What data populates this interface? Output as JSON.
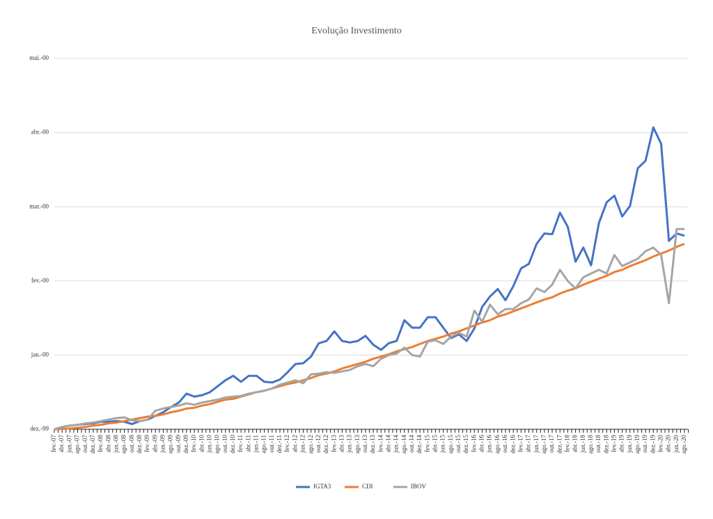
{
  "chart_data": {
    "type": "line",
    "title": "Evolução Investimento",
    "categories": [
      "fev.-07",
      "abr.-07",
      "jun.-07",
      "ago.-07",
      "out.-07",
      "dez.-07",
      "fev.-08",
      "abr.-08",
      "jun.-08",
      "ago.-08",
      "out.-08",
      "dez.-08",
      "fev.-09",
      "abr.-09",
      "jun.-09",
      "ago.-09",
      "out.-09",
      "dez.-09",
      "fev.-10",
      "abr.-10",
      "jun.-10",
      "ago.-10",
      "out.-10",
      "dez.-10",
      "fev.-11",
      "abr.-11",
      "jun.-11",
      "ago.-11",
      "out.-11",
      "dez.-11",
      "fev.-12",
      "abr.-12",
      "jun.-12",
      "ago.-12",
      "out.-12",
      "dez.-12",
      "fev.-13",
      "abr.-13",
      "jun.-13",
      "ago.-13",
      "out.-13",
      "dez.-13",
      "fev.-14",
      "abr.-14",
      "jun.-14",
      "ago.-14",
      "out.-14",
      "dez.-14",
      "fev.-15",
      "abr.-15",
      "jun.-15",
      "ago.-15",
      "out.-15",
      "dez.-15",
      "fev.-16",
      "abr.-16",
      "jun.-16",
      "ago.-16",
      "out.-16",
      "dez.-16",
      "fev.-17",
      "abr.-17",
      "jun.-17",
      "ago.-17",
      "out.-17",
      "dez.-17",
      "fev.-18",
      "abr.-18",
      "jun.-18",
      "ago.-18",
      "out.-18",
      "dez.-18",
      "fev.-19",
      "abr.-19",
      "jun.-19",
      "ago.-19",
      "out.-19",
      "dez.-19",
      "fev.-20",
      "abr.-20",
      "jun.-20",
      "ago.-20"
    ],
    "series": [
      {
        "name": "IGTA3",
        "color": "#4472c4",
        "values": [
          0,
          0.03,
          0.05,
          0.06,
          0.07,
          0.08,
          0.1,
          0.1,
          0.11,
          0.1,
          0.07,
          0.11,
          0.13,
          0.18,
          0.23,
          0.3,
          0.36,
          0.48,
          0.44,
          0.46,
          0.5,
          0.58,
          0.66,
          0.72,
          0.64,
          0.72,
          0.72,
          0.64,
          0.63,
          0.67,
          0.77,
          0.88,
          0.89,
          0.98,
          1.16,
          1.19,
          1.32,
          1.19,
          1.17,
          1.19,
          1.26,
          1.14,
          1.07,
          1.16,
          1.19,
          1.47,
          1.37,
          1.37,
          1.51,
          1.51,
          1.37,
          1.23,
          1.28,
          1.19,
          1.36,
          1.65,
          1.79,
          1.89,
          1.74,
          1.93,
          2.17,
          2.23,
          2.5,
          2.64,
          2.63,
          2.92,
          2.73,
          2.26,
          2.45,
          2.21,
          2.78,
          3.06,
          3.15,
          2.87,
          3.01,
          3.52,
          3.62,
          4.07,
          3.85,
          2.54,
          2.64,
          2.61
        ]
      },
      {
        "name": "CDI",
        "color": "#ed7d31",
        "values": [
          0,
          0.005,
          0.01,
          0.02,
          0.03,
          0.05,
          0.06,
          0.08,
          0.09,
          0.11,
          0.13,
          0.15,
          0.17,
          0.18,
          0.2,
          0.23,
          0.25,
          0.28,
          0.29,
          0.32,
          0.34,
          0.37,
          0.4,
          0.41,
          0.44,
          0.47,
          0.5,
          0.52,
          0.55,
          0.58,
          0.61,
          0.63,
          0.66,
          0.69,
          0.73,
          0.75,
          0.78,
          0.82,
          0.85,
          0.88,
          0.91,
          0.95,
          0.98,
          1.01,
          1.05,
          1.08,
          1.11,
          1.15,
          1.19,
          1.22,
          1.25,
          1.29,
          1.32,
          1.36,
          1.4,
          1.44,
          1.47,
          1.52,
          1.55,
          1.59,
          1.63,
          1.67,
          1.71,
          1.75,
          1.78,
          1.83,
          1.87,
          1.9,
          1.95,
          1.99,
          2.03,
          2.07,
          2.12,
          2.15,
          2.2,
          2.24,
          2.28,
          2.33,
          2.37,
          2.41,
          2.46,
          2.5
        ]
      },
      {
        "name": "IBOV",
        "color": "#a5a5a5",
        "values": [
          0,
          0.03,
          0.05,
          0.06,
          0.08,
          0.09,
          0.11,
          0.13,
          0.15,
          0.16,
          0.12,
          0.11,
          0.13,
          0.25,
          0.28,
          0.3,
          0.32,
          0.35,
          0.33,
          0.36,
          0.38,
          0.4,
          0.43,
          0.44,
          0.45,
          0.48,
          0.5,
          0.52,
          0.55,
          0.6,
          0.63,
          0.66,
          0.62,
          0.74,
          0.75,
          0.77,
          0.76,
          0.78,
          0.8,
          0.85,
          0.88,
          0.85,
          0.95,
          1.0,
          1.02,
          1.1,
          1.0,
          0.98,
          1.18,
          1.2,
          1.15,
          1.25,
          1.3,
          1.25,
          1.6,
          1.45,
          1.68,
          1.55,
          1.62,
          1.62,
          1.7,
          1.75,
          1.9,
          1.85,
          1.95,
          2.15,
          2.0,
          1.9,
          2.05,
          2.1,
          2.15,
          2.1,
          2.35,
          2.2,
          2.25,
          2.3,
          2.4,
          2.45,
          2.35,
          1.7,
          2.7,
          2.7
        ]
      }
    ],
    "ylim": [
      0,
      5
    ],
    "yticks": [
      {
        "value": 0,
        "label": "dez.-99"
      },
      {
        "value": 1,
        "label": "jan.-00"
      },
      {
        "value": 2,
        "label": "fev.-00"
      },
      {
        "value": 3,
        "label": "mar.-00"
      },
      {
        "value": 4,
        "label": "abr.-00"
      },
      {
        "value": 5,
        "label": "mai.-00"
      }
    ],
    "grid": true,
    "legend": "bottom"
  }
}
